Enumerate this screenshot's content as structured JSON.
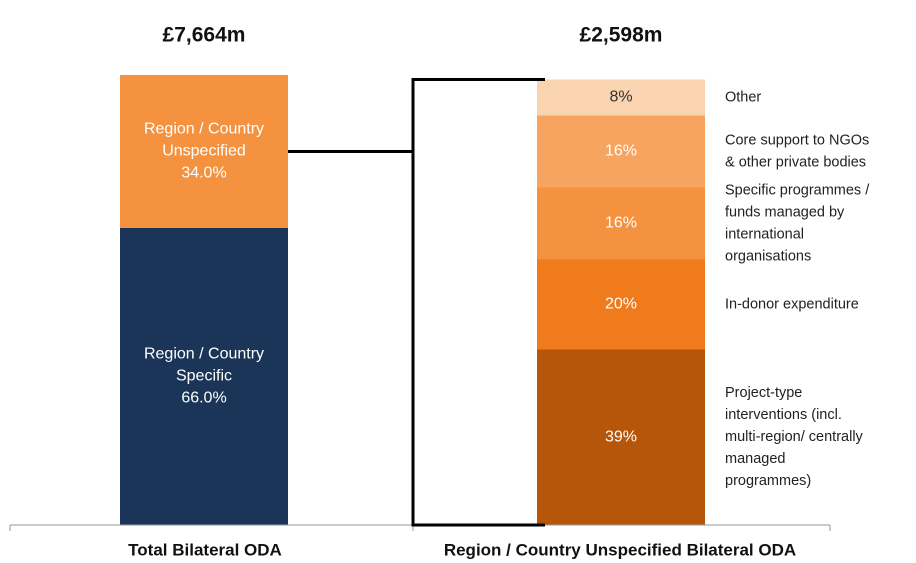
{
  "chart_data": {
    "type": "stacked_bar",
    "ylim": [
      0,
      100
    ],
    "bars": [
      {
        "category": "Total Bilateral ODA",
        "title": "£7,664m",
        "label_position": "inside",
        "segments": [
          {
            "name": [
              "Region / Country",
              "Specific"
            ],
            "value": 66.0,
            "value_label": "66.0%",
            "color": "#1a3558",
            "text_color": "#ffffff"
          },
          {
            "name": [
              "Region / Country",
              "Unspecified"
            ],
            "value": 34.0,
            "value_label": "34.0%",
            "color": "#f4923f",
            "text_color": "#ffffff"
          }
        ]
      },
      {
        "category": "Region / Country Unspecified Bilateral ODA",
        "title": "£2,598m",
        "label_position": "outside",
        "segments": [
          {
            "name": [
              "Project-type",
              "interventions  (incl.",
              "multi-region/ centrally",
              "managed",
              "programmes)"
            ],
            "value": 39,
            "value_label": "39%",
            "color": "#b5560b",
            "text_color": "#ffffff"
          },
          {
            "name": [
              "In-donor expenditure"
            ],
            "value": 20,
            "value_label": "20%",
            "color": "#f07b1d",
            "text_color": "#ffffff"
          },
          {
            "name": [
              "Specific programmes  /",
              "funds managed  by",
              "international",
              "organisations"
            ],
            "value": 16,
            "value_label": "16%",
            "color": "#f4923f",
            "text_color": "#ffffff"
          },
          {
            "name": [
              "Core support to NGOs",
              "& other private bodies"
            ],
            "value": 16,
            "value_label": "16%",
            "color": "#f7a460",
            "text_color": "#ffffff"
          },
          {
            "name": [
              "Other"
            ],
            "value": 8,
            "value_label": "8%",
            "color": "#fad3b0",
            "text_color": "#333333"
          }
        ]
      }
    ]
  }
}
